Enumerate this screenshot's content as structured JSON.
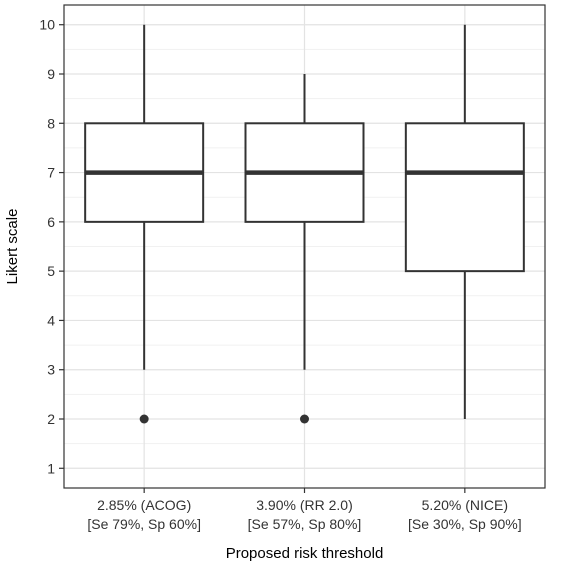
{
  "chart_data": {
    "type": "box",
    "title": "",
    "xlabel": "Proposed risk threshold",
    "ylabel": "Likert scale",
    "ylim": [
      0.6,
      10.4
    ],
    "yticks": [
      1,
      2,
      3,
      4,
      5,
      6,
      7,
      8,
      9,
      10
    ],
    "grid": true,
    "legend": "none",
    "categories": [
      [
        "2.85% (ACOG)",
        "[Se 79%, Sp 60%]"
      ],
      [
        "3.90% (RR 2.0)",
        "[Se 57%, Sp 80%]"
      ],
      [
        "5.20% (NICE)",
        "[Se 30%, Sp 90%]"
      ]
    ],
    "boxes": [
      {
        "whisker_low": 3,
        "q1": 6,
        "median": 7,
        "q3": 8,
        "whisker_high": 10,
        "outliers": [
          2
        ]
      },
      {
        "whisker_low": 3,
        "q1": 6,
        "median": 7,
        "q3": 8,
        "whisker_high": 9,
        "outliers": [
          2
        ]
      },
      {
        "whisker_low": 2,
        "q1": 5,
        "median": 7,
        "q3": 8,
        "whisker_high": 10,
        "outliers": []
      }
    ],
    "colors": {
      "panel_background": "#ffffff",
      "grid_major": "#e3e3e3",
      "grid_minor": "#f1f1f1",
      "box_fill": "#ffffff",
      "box_stroke": "#333333",
      "outlier": "#333333",
      "panel_border": "#333333"
    }
  }
}
